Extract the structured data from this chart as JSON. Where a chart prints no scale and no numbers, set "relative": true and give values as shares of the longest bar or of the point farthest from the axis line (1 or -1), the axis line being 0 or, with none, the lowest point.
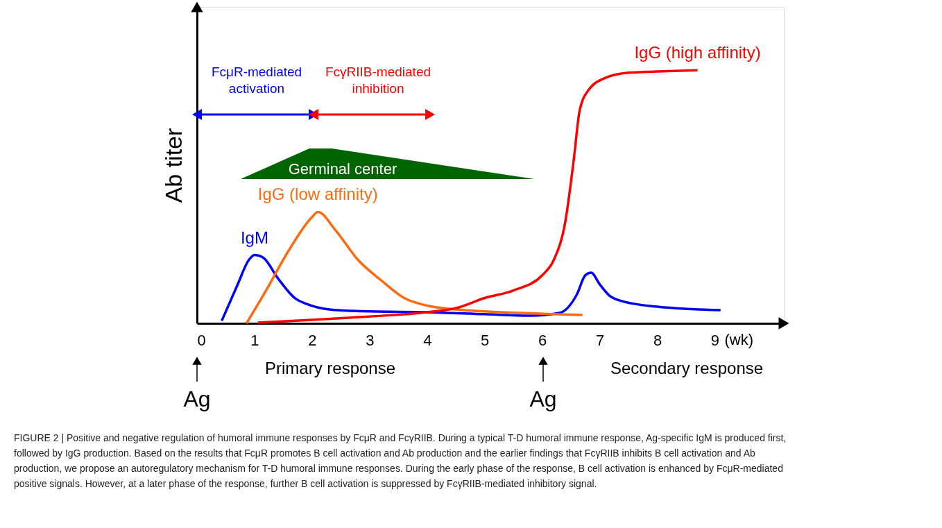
{
  "chart_data": {
    "type": "line",
    "relative": true,
    "ylabel": "Ab titer",
    "xlabel": "(wk)",
    "xlim": [
      0,
      10.2
    ],
    "xticks": [
      0,
      1,
      2,
      3,
      4,
      5,
      6,
      7,
      8,
      9
    ],
    "series": [
      {
        "name": "IgM",
        "color": "#0000ff",
        "x": [
          0.43,
          0.7,
          0.9,
          1.0,
          1.15,
          1.4,
          1.7,
          1.9,
          2.3,
          3.0,
          4.0,
          5.0,
          5.8,
          6.3,
          6.6,
          6.75,
          6.85,
          7.0,
          7.2,
          7.6,
          8.0,
          9.1
        ],
        "values": [
          0.01,
          0.15,
          0.25,
          0.27,
          0.26,
          0.18,
          0.1,
          0.077,
          0.055,
          0.047,
          0.044,
          0.036,
          0.03,
          0.041,
          0.113,
          0.19,
          0.2,
          0.154,
          0.104,
          0.077,
          0.066,
          0.052
        ]
      },
      {
        "name": "IgG (low affinity)",
        "color": "#ff6a10",
        "x": [
          0.86,
          1.2,
          1.6,
          2.0,
          2.1,
          2.4,
          2.8,
          3.2,
          3.6,
          4.0,
          4.5,
          5.0,
          6.0,
          6.7
        ],
        "values": [
          0.0,
          0.13,
          0.29,
          0.42,
          0.44,
          0.37,
          0.25,
          0.17,
          0.1,
          0.07,
          0.055,
          0.047,
          0.038,
          0.033
        ]
      },
      {
        "name": "IgG (high affinity)",
        "color": "#ff0000",
        "x": [
          1.06,
          2.0,
          3.0,
          4.0,
          4.5,
          5.0,
          5.5,
          6.0,
          6.2,
          6.4,
          6.55,
          6.65,
          6.8,
          7.1,
          7.5,
          8.0,
          8.7
        ],
        "values": [
          0.003,
          0.014,
          0.027,
          0.044,
          0.06,
          0.1,
          0.13,
          0.19,
          0.25,
          0.4,
          0.65,
          0.84,
          0.92,
          0.97,
          0.99,
          0.995,
          1.0
        ]
      }
    ],
    "annotations": [
      "FcμR-mediated\nactivation",
      "FcγRIIB-mediated\ninhibition",
      "Germinal center",
      "Ag",
      "Ag",
      "Primary response",
      "Secondary response",
      "FIGURE 2 | Positive and negative regulation of humoral immune responses by FcμR and FcγRIIB. During a typical T-D humoral immune response, Ag-specific IgM is produced first, followed by IgG production. Based on the results that FcμR promotes B cell activation and Ab production and the earlier findings that FcγRIIB inhibits B cell activation and Ab production, we propose an autoregulatory mechanism for T-D humoral immune responses. During the early phase of the response, B cell activation is enhanced by FcμR-mediated positive signals. However, at a later phase of the response, further B cell activation is suppressed by FcγRIIB-mediated inhibitory signal."
    ],
    "grid": false,
    "marker": "none",
    "line_style": "solid"
  }
}
